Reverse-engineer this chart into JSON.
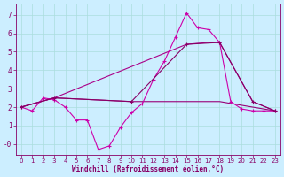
{
  "xlabel": "Windchill (Refroidissement éolien,°C)",
  "bg_color": "#cceeff",
  "grid_color": "#aadddd",
  "text_color": "#880066",
  "xlim": [
    -0.5,
    23.5
  ],
  "ylim": [
    -0.6,
    7.6
  ],
  "xticks": [
    0,
    1,
    2,
    3,
    4,
    5,
    6,
    7,
    8,
    9,
    10,
    11,
    12,
    13,
    14,
    15,
    16,
    17,
    18,
    19,
    20,
    21,
    22,
    23
  ],
  "yticks": [
    0,
    1,
    2,
    3,
    4,
    5,
    6,
    7
  ],
  "ytick_labels": [
    "-0",
    "1",
    "2",
    "3",
    "4",
    "5",
    "6",
    "7"
  ],
  "line1_x": [
    0,
    1,
    2,
    3,
    4,
    5,
    6,
    7,
    8,
    9,
    10,
    11,
    12,
    13,
    14,
    15,
    16,
    17,
    18,
    19,
    20,
    21,
    22,
    23
  ],
  "line1_y": [
    2.0,
    1.8,
    2.5,
    2.4,
    2.0,
    1.3,
    1.3,
    -0.3,
    -0.1,
    0.9,
    1.7,
    2.2,
    3.5,
    4.5,
    5.8,
    7.1,
    6.3,
    6.2,
    5.5,
    2.3,
    1.9,
    1.8,
    1.8,
    1.8
  ],
  "line2_x": [
    0,
    3,
    10,
    15,
    18,
    21,
    23
  ],
  "line2_y": [
    2.0,
    2.5,
    2.3,
    5.4,
    5.5,
    2.3,
    1.8
  ],
  "line3_x": [
    0,
    3,
    15,
    17,
    18,
    21,
    23
  ],
  "line3_y": [
    2.0,
    2.5,
    5.4,
    5.5,
    5.5,
    2.3,
    1.8
  ],
  "line4_x": [
    0,
    3,
    10,
    18,
    21,
    23
  ],
  "line4_y": [
    2.0,
    2.5,
    2.3,
    2.3,
    2.0,
    1.8
  ],
  "lc1": "#cc00aa",
  "lc2": "#880066",
  "lc3": "#aa0088",
  "lc4": "#990077"
}
